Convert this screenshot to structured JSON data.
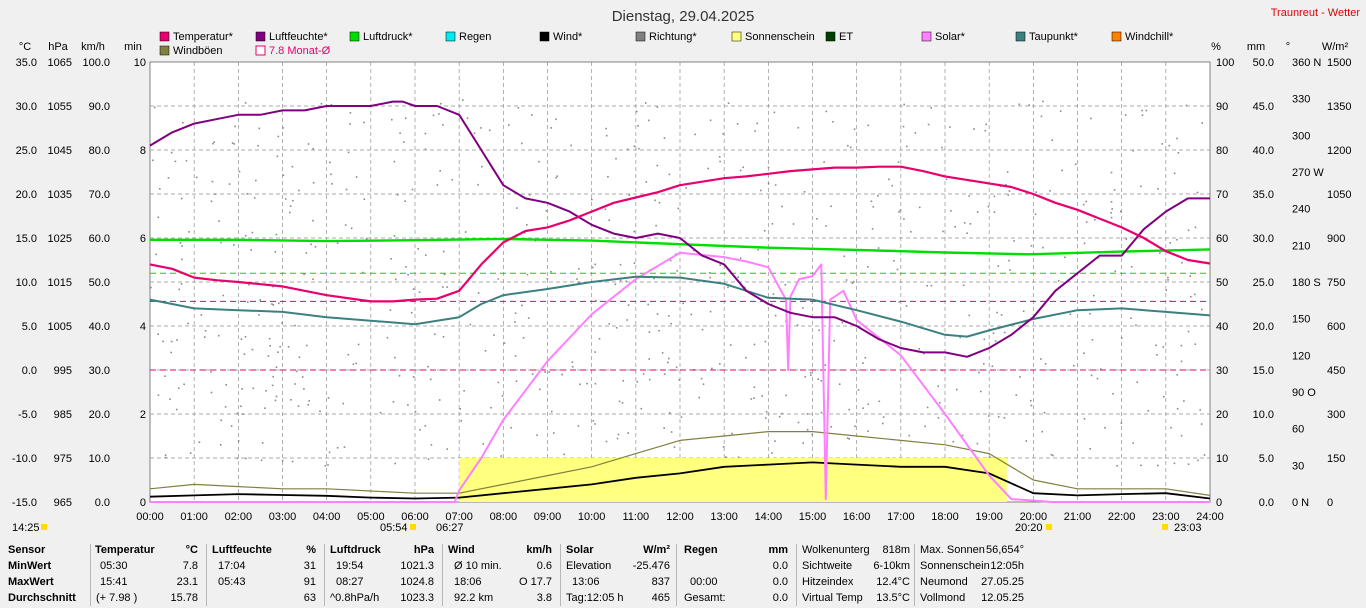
{
  "header": {
    "title": "Dienstag, 29.04.2025",
    "site": "Traunreut - Wetter"
  },
  "legend": [
    {
      "label": "Temperatur*",
      "color": "#e8006e",
      "style": "box"
    },
    {
      "label": "Luftfeuchte*",
      "color": "#800080",
      "style": "box"
    },
    {
      "label": "Luftdruck*",
      "color": "#00dd00",
      "style": "box"
    },
    {
      "label": "Regen",
      "color": "#00e8f0",
      "style": "box"
    },
    {
      "label": "Wind*",
      "color": "#000000",
      "style": "box"
    },
    {
      "label": "Richtung*",
      "color": "#808080",
      "style": "box"
    },
    {
      "label": "Sonnenschein",
      "color": "#ffff80",
      "style": "box"
    },
    {
      "label": "ET",
      "color": "#004000",
      "style": "box"
    },
    {
      "label": "Solar*",
      "color": "#ff80ff",
      "style": "box"
    },
    {
      "label": "Taupunkt*",
      "color": "#3c8080",
      "style": "box"
    },
    {
      "label": "Windchill*",
      "color": "#ff8000",
      "style": "box"
    },
    {
      "label": "Windböen",
      "color": "#808040",
      "style": "box"
    },
    {
      "label": "7.8 Monat-Ø",
      "color": "#e8006e",
      "style": "outline"
    }
  ],
  "axis_units": {
    "left": [
      "°C",
      "hPa",
      "km/h",
      "min"
    ],
    "right": [
      "%",
      "mm",
      "°",
      "W/m²"
    ]
  },
  "axes": {
    "temp": {
      "min": -15,
      "max": 35,
      "ticks": [
        "35.0",
        "30.0",
        "25.0",
        "20.0",
        "15.0",
        "10.0",
        "5.0",
        "0.0",
        "-5.0",
        "-10.0",
        "-15.0"
      ]
    },
    "pressure": {
      "min": 965,
      "max": 1065,
      "ticks": [
        "1065",
        "1055",
        "1045",
        "1035",
        "1025",
        "1015",
        "1005",
        "995",
        "985",
        "975",
        "965"
      ]
    },
    "wind": {
      "min": 0,
      "max": 100,
      "ticks": [
        "100.0",
        "90.0",
        "80.0",
        "70.0",
        "60.0",
        "50.0",
        "40.0",
        "30.0",
        "20.0",
        "10.0",
        "0.0"
      ]
    },
    "minutes": {
      "min": 0,
      "max": 10,
      "ticks": [
        "10",
        "8",
        "6",
        "4",
        "2",
        "0"
      ]
    },
    "humidity": {
      "min": 0,
      "max": 100,
      "ticks": [
        "100",
        "90",
        "80",
        "70",
        "60",
        "50",
        "40",
        "30",
        "20",
        "10",
        "0"
      ]
    },
    "rain": {
      "min": 0,
      "max": 50,
      "ticks": [
        "50.0",
        "45.0",
        "40.0",
        "35.0",
        "30.0",
        "25.0",
        "20.0",
        "15.0",
        "10.0",
        "5.0",
        "0.0"
      ]
    },
    "direction": {
      "min": 0,
      "max": 360,
      "ticks": [
        "360 N",
        "330",
        "300",
        "270 W",
        "240",
        "210",
        "180 S",
        "150",
        "120",
        "90 O",
        "60",
        "30",
        "0 N"
      ]
    },
    "solar": {
      "min": 0,
      "max": 1500,
      "ticks": [
        "1500",
        "1350",
        "1200",
        "1050",
        "900",
        "750",
        "600",
        "450",
        "300",
        "150",
        "0"
      ]
    }
  },
  "chart_data": {
    "type": "line",
    "title": "Dienstag, 29.04.2025",
    "x_ticks": [
      "00:00",
      "01:00",
      "02:00",
      "03:00",
      "04:00",
      "05:00",
      "06:00",
      "07:00",
      "08:00",
      "09:00",
      "10:00",
      "11:00",
      "12:00",
      "13:00",
      "14:00",
      "15:00",
      "16:00",
      "17:00",
      "18:00",
      "19:00",
      "20:00",
      "21:00",
      "22:00",
      "23:00",
      "24:00"
    ],
    "x_hours_range": [
      0,
      24
    ],
    "grid": true,
    "sun_events": [
      "14:25",
      "05:54",
      "06:27",
      "20:20",
      "23:03"
    ],
    "series": [
      {
        "name": "Temperatur*",
        "axis": "temp",
        "color": "#e8006e",
        "x": [
          0,
          0.5,
          1,
          1.5,
          2,
          3,
          4,
          5,
          5.5,
          6,
          6.5,
          7,
          7.5,
          8,
          8.5,
          9,
          9.5,
          10,
          10.5,
          11,
          11.5,
          12,
          12.5,
          13,
          13.5,
          14,
          14.5,
          15,
          15.5,
          16,
          16.5,
          17,
          17.5,
          18,
          18.5,
          19,
          19.5,
          20,
          20.5,
          21,
          21.5,
          22,
          22.5,
          23,
          23.5,
          24
        ],
        "y": [
          12.0,
          11.5,
          10.5,
          10.2,
          10.0,
          9.5,
          8.5,
          7.8,
          7.8,
          8.0,
          8.1,
          9.0,
          12.0,
          14.5,
          15.8,
          16.2,
          17.0,
          18.0,
          19.0,
          19.6,
          20.2,
          21.0,
          21.4,
          21.8,
          22.0,
          22.3,
          22.6,
          22.8,
          23.0,
          23.0,
          23.1,
          23.1,
          22.6,
          22.0,
          21.6,
          21.2,
          20.8,
          20.0,
          19.0,
          18.2,
          17.2,
          16.2,
          15.0,
          13.5,
          12.5,
          12.1
        ]
      },
      {
        "name": "Luftfeuchte*",
        "axis": "humidity",
        "color": "#800080",
        "x": [
          0,
          0.5,
          1,
          1.5,
          2,
          2.5,
          3,
          3.5,
          4,
          4.5,
          5,
          5.5,
          5.72,
          6,
          6.5,
          7,
          7.5,
          8,
          8.5,
          9,
          9.5,
          10,
          10.5,
          11,
          11.5,
          12,
          12.5,
          13,
          13.5,
          14,
          14.5,
          15,
          15.5,
          16,
          16.5,
          17,
          17.5,
          18,
          18.5,
          19,
          19.5,
          20,
          20.5,
          21,
          21.5,
          22,
          22.5,
          23,
          23.5,
          24
        ],
        "y": [
          81,
          84,
          86,
          87,
          88,
          88,
          89,
          89,
          90,
          90,
          90,
          91,
          91,
          90,
          90,
          88,
          80,
          72,
          69,
          68,
          66,
          63,
          61,
          60,
          61,
          60,
          56,
          54,
          48,
          45,
          43,
          42,
          42,
          40,
          37,
          35,
          34,
          34,
          33,
          35,
          38,
          42,
          48,
          52,
          56,
          56,
          62,
          66,
          69,
          69
        ]
      },
      {
        "name": "Luftdruck*",
        "axis": "pressure",
        "color": "#00dd00",
        "x": [
          0,
          2,
          4,
          6,
          8,
          9,
          10,
          12,
          14,
          16,
          18,
          19.9,
          22,
          24
        ],
        "y": [
          1024.6,
          1024.6,
          1024.3,
          1024.5,
          1024.8,
          1024.6,
          1024.4,
          1023.6,
          1022.8,
          1022.3,
          1021.7,
          1021.3,
          1021.9,
          1022.4
        ]
      },
      {
        "name": "Taupunkt*",
        "axis": "temp",
        "color": "#3c8080",
        "x": [
          0,
          1,
          2,
          3,
          4,
          5,
          6,
          7,
          7.5,
          8,
          9,
          10,
          11,
          12,
          13,
          14,
          15,
          16,
          17,
          18,
          18.5,
          19,
          20,
          21,
          22,
          23,
          24
        ],
        "y": [
          8.0,
          7.0,
          6.8,
          6.6,
          6.0,
          5.6,
          5.2,
          6.0,
          7.5,
          8.5,
          9.2,
          10.0,
          10.6,
          10.5,
          9.8,
          8.2,
          8.0,
          6.8,
          5.5,
          4.0,
          3.8,
          4.5,
          5.8,
          6.8,
          7.0,
          6.6,
          6.2
        ]
      },
      {
        "name": "Solar*",
        "axis": "solar",
        "color": "#ff80ff",
        "x": [
          0,
          6.9,
          7.0,
          7.5,
          8,
          9,
          10,
          11,
          12,
          13,
          13.5,
          14,
          14.4,
          14.45,
          14.5,
          14.7,
          15.0,
          15.2,
          15.3,
          15.4,
          15.5,
          15.7,
          16,
          17,
          18,
          19,
          19.5,
          20,
          20.4,
          24
        ],
        "y": [
          0,
          0,
          40,
          150,
          280,
          480,
          640,
          760,
          850,
          835,
          820,
          800,
          690,
          450,
          700,
          760,
          770,
          810,
          10,
          690,
          700,
          720,
          620,
          500,
          300,
          90,
          10,
          5,
          0,
          0
        ]
      },
      {
        "name": "Wind*",
        "axis": "wind",
        "color": "#000000",
        "x": [
          0,
          1,
          2,
          3,
          4,
          5,
          6,
          7,
          8,
          9,
          10,
          11,
          12,
          13,
          14,
          15,
          16,
          17,
          18,
          19,
          20,
          21,
          22,
          23,
          24
        ],
        "y": [
          1.2,
          1.5,
          1.8,
          1.6,
          1.4,
          1.0,
          0.8,
          1.0,
          2.0,
          3.0,
          4.0,
          5.5,
          6.5,
          8.0,
          8.5,
          9.0,
          8.5,
          8.0,
          8.0,
          6.5,
          2.0,
          1.5,
          1.8,
          2.0,
          0.8
        ]
      },
      {
        "name": "Windböen",
        "axis": "wind",
        "color": "#808040",
        "x": [
          0,
          1,
          2,
          3,
          4,
          5,
          6,
          7,
          8,
          9,
          10,
          11,
          12,
          13,
          14,
          15,
          16,
          17,
          18,
          19,
          20,
          21,
          22,
          23,
          24
        ],
        "y": [
          3,
          4,
          3.5,
          3,
          3,
          2.5,
          2,
          2,
          4,
          6,
          8,
          11,
          14,
          15,
          16,
          16,
          15,
          14,
          13,
          11,
          5,
          3,
          3,
          3,
          1.5
        ]
      },
      {
        "name": "Sonnenschein",
        "axis": "minutes",
        "color": "#ffff80",
        "x": [
          7.0,
          19.4
        ],
        "y": [
          1,
          1
        ]
      }
    ],
    "reference_lines": [
      {
        "axis": "temp",
        "value": 7.8,
        "color": "#e8006e"
      },
      {
        "axis": "pressure",
        "value": 1017,
        "color": "#00dd00"
      },
      {
        "axis": "temp",
        "value": 0,
        "color": "#e8006e"
      }
    ],
    "direction_samples": {
      "x_hours_range": [
        0,
        24
      ],
      "y_degrees_range": [
        30,
        330
      ]
    }
  },
  "table": {
    "sensor": {
      "header": "Sensor",
      "rows": [
        "MinWert",
        "MaxWert",
        "Durchschnitt"
      ]
    },
    "temperatur": {
      "header": "Temperatur",
      "unit": "°C",
      "col1": [
        "05:30",
        "15:41",
        "(+ 7.98 )"
      ],
      "col2": [
        "7.8",
        "23.1",
        "15.78"
      ]
    },
    "luftfeuchte": {
      "header": "Luftfeuchte",
      "unit": "%",
      "col1": [
        "17:04",
        "05:43",
        ""
      ],
      "col2": [
        "31",
        "91",
        "63"
      ]
    },
    "luftdruck": {
      "header": "Luftdruck",
      "unit": "hPa",
      "col1": [
        "19:54",
        "08:27",
        "^0.8hPa/h"
      ],
      "col2": [
        "1021.3",
        "1024.8",
        "1023.3"
      ]
    },
    "wind": {
      "header": "Wind",
      "unit": "km/h",
      "col1": [
        "Ø 10 min.",
        "18:06",
        "92.2 km"
      ],
      "col2": [
        "0.6",
        "O 17.7",
        "3.8"
      ]
    },
    "solar": {
      "header": "Solar",
      "unit": "W/m²",
      "col1": [
        "Elevation",
        "13:06",
        "Tag:12:05 h"
      ],
      "col2": [
        "-25.476",
        "837",
        "465"
      ]
    },
    "regen": {
      "header": "Regen",
      "unit": "mm",
      "col1": [
        "",
        "00:00",
        "Gesamt:"
      ],
      "col2": [
        "",
        "0.0",
        "0.0"
      ],
      "col0": "0.0"
    },
    "misc1": {
      "labels": [
        "Wolkenunterg",
        "Sichtweite",
        "Hitzeindex",
        "Virtual Temp"
      ],
      "values": [
        "818m",
        "6-10km",
        "12.4°C",
        "13.5°C"
      ]
    },
    "misc2": {
      "labels": [
        "Max. Sonnen",
        "Sonnenschein",
        "Neumond",
        "Vollmond"
      ],
      "values": [
        "56,654°",
        "12:05h",
        "27.05.25",
        "12.05.25"
      ]
    }
  }
}
